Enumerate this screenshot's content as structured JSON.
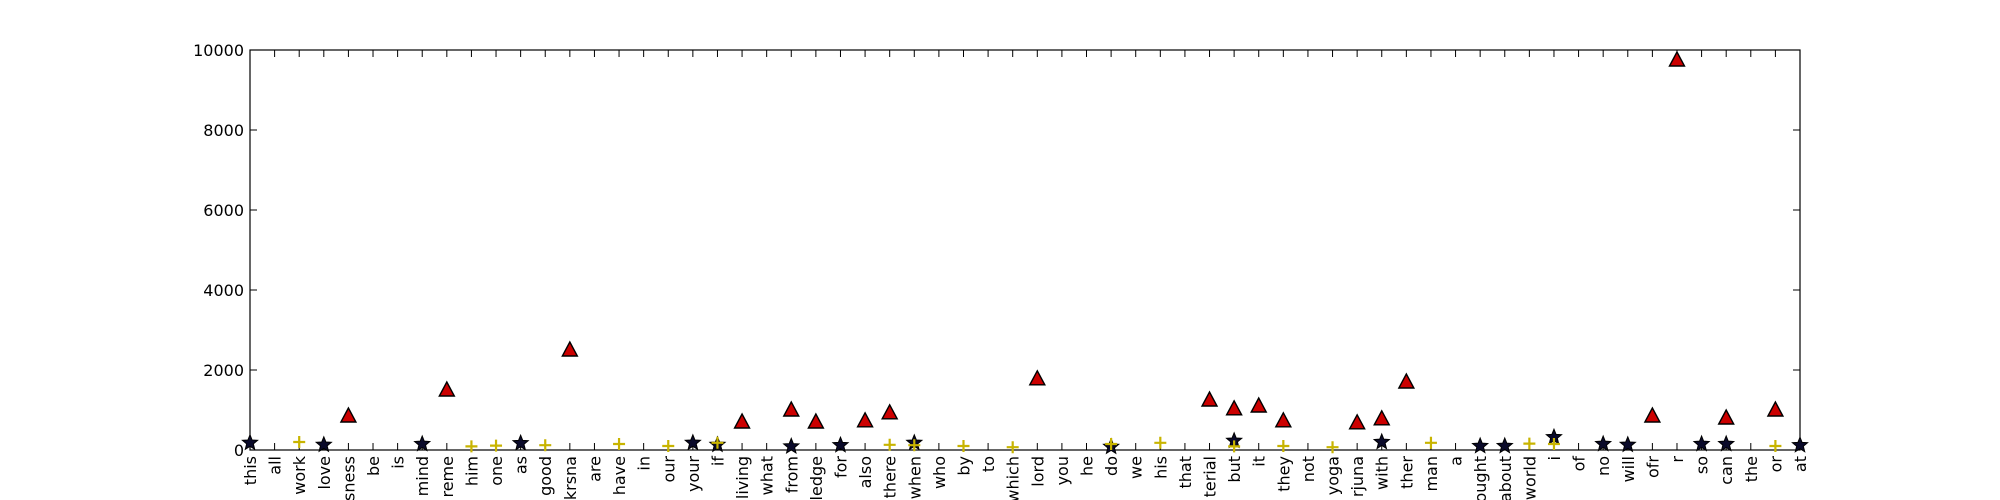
{
  "chart_data": {
    "type": "scatter",
    "title": "",
    "xlabel": "",
    "ylabel": "",
    "ylim": [
      0,
      10000
    ],
    "yticks": [
      0,
      2000,
      4000,
      6000,
      8000,
      10000
    ],
    "grid": false,
    "legend": "none",
    "categories": [
      "this",
      "all",
      "work",
      "love",
      "sness",
      "be",
      "is",
      "mind",
      "reme",
      "him",
      "one",
      "as",
      "good",
      "krsna",
      "are",
      "have",
      "in",
      "our",
      "your",
      "if",
      "living",
      "what",
      "from",
      "ledge",
      "for",
      "also",
      "there",
      "when",
      "who",
      "by",
      "to",
      "which",
      "lord",
      "you",
      "he",
      "do",
      "we",
      "his",
      "that",
      "terial",
      "but",
      "it",
      "they",
      "not",
      "yoga",
      "rjuna",
      "with",
      "ther",
      "man",
      "a",
      "ought",
      "about",
      "world",
      "i",
      "of",
      "no",
      "will",
      "ofr",
      "r",
      "so",
      "can",
      "the",
      "or",
      "at"
    ],
    "series": [
      {
        "marker": "triangle",
        "color": "#cc0000",
        "points": [
          {
            "x": "sness",
            "y": 850
          },
          {
            "x": "reme",
            "y": 1500
          },
          {
            "x": "krsna",
            "y": 2500
          },
          {
            "x": "living",
            "y": 700
          },
          {
            "x": "from",
            "y": 1000
          },
          {
            "x": "ledge",
            "y": 700
          },
          {
            "x": "also",
            "y": 730
          },
          {
            "x": "there",
            "y": 930
          },
          {
            "x": "lord",
            "y": 1780
          },
          {
            "x": "terial",
            "y": 1250
          },
          {
            "x": "but",
            "y": 1030
          },
          {
            "x": "it",
            "y": 1100
          },
          {
            "x": "they",
            "y": 730
          },
          {
            "x": "rjuna",
            "y": 680
          },
          {
            "x": "with",
            "y": 780
          },
          {
            "x": "ther",
            "y": 1700
          },
          {
            "x": "ofr",
            "y": 850
          },
          {
            "x": "r",
            "y": 9750
          },
          {
            "x": "can",
            "y": 800
          },
          {
            "x": "or",
            "y": 1000
          }
        ]
      },
      {
        "marker": "star",
        "color": "#0a0a2a",
        "points": [
          {
            "x": "this",
            "y": 180
          },
          {
            "x": "love",
            "y": 130
          },
          {
            "x": "mind",
            "y": 150
          },
          {
            "x": "as",
            "y": 170
          },
          {
            "x": "your",
            "y": 180
          },
          {
            "x": "if",
            "y": 130
          },
          {
            "x": "from",
            "y": 90
          },
          {
            "x": "for",
            "y": 120
          },
          {
            "x": "when",
            "y": 180
          },
          {
            "x": "do",
            "y": 80
          },
          {
            "x": "but",
            "y": 230
          },
          {
            "x": "with",
            "y": 200
          },
          {
            "x": "ought",
            "y": 100
          },
          {
            "x": "about",
            "y": 100
          },
          {
            "x": "i",
            "y": 320
          },
          {
            "x": "no",
            "y": 150
          },
          {
            "x": "will",
            "y": 130
          },
          {
            "x": "so",
            "y": 150
          },
          {
            "x": "can",
            "y": 150
          },
          {
            "x": "at",
            "y": 120
          }
        ]
      },
      {
        "marker": "plus",
        "color": "#c8b400",
        "points": [
          {
            "x": "work",
            "y": 200
          },
          {
            "x": "him",
            "y": 90
          },
          {
            "x": "one",
            "y": 110
          },
          {
            "x": "good",
            "y": 120
          },
          {
            "x": "have",
            "y": 150
          },
          {
            "x": "our",
            "y": 100
          },
          {
            "x": "if",
            "y": 180
          },
          {
            "x": "there",
            "y": 130
          },
          {
            "x": "when",
            "y": 120
          },
          {
            "x": "by",
            "y": 100
          },
          {
            "x": "which",
            "y": 70
          },
          {
            "x": "do",
            "y": 150
          },
          {
            "x": "his",
            "y": 180
          },
          {
            "x": "but",
            "y": 90
          },
          {
            "x": "they",
            "y": 100
          },
          {
            "x": "yoga",
            "y": 70
          },
          {
            "x": "man",
            "y": 180
          },
          {
            "x": "world",
            "y": 160
          },
          {
            "x": "i",
            "y": 150
          },
          {
            "x": "or",
            "y": 100
          }
        ]
      }
    ]
  }
}
